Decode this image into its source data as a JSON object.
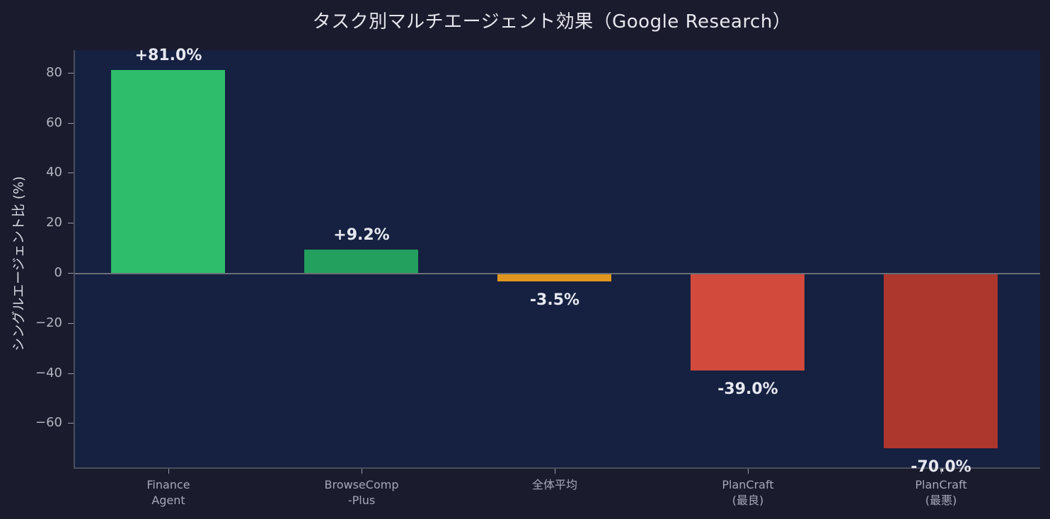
{
  "chart_data": {
    "type": "bar",
    "title": "タスク別マルチエージェント効果（Google Research）",
    "xlabel": "",
    "ylabel": "シングルエージェント比 (%)",
    "categories": [
      "Finance\nAgent",
      "BrowseComp\n-Plus",
      "全体平均",
      "PlanCraft\n(最良)",
      "PlanCraft\n(最悪)"
    ],
    "values": [
      81.0,
      9.2,
      -3.5,
      -39.0,
      -70.0
    ],
    "value_labels": [
      "+81.0%",
      "+9.2%",
      "-3.5%",
      "-39.0%",
      "-70.0%"
    ],
    "bar_colors": [
      "#2dbd6b",
      "#23a05d",
      "#e0961e",
      "#d14a3c",
      "#ad362d"
    ],
    "ylim": [
      -78,
      89
    ],
    "yticks": [
      80,
      60,
      40,
      20,
      0,
      -20,
      -40,
      -60
    ],
    "ytick_labels": [
      "80",
      "60",
      "40",
      "20",
      "0",
      "−20",
      "−40",
      "−60"
    ],
    "grid": false,
    "legend": null
  },
  "colors": {
    "figure_bg": "#1b1b2e",
    "plot_bg": "#162040",
    "text": "#e6e6ee"
  }
}
